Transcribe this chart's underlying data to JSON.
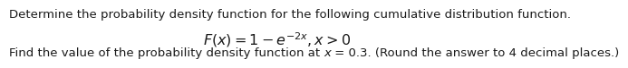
{
  "line1": "Determine the probability density function for the following cumulative distribution function.",
  "line2_math": "$F(x) = 1 - e^{-2x}, x > 0$",
  "line3_prefix": "Find the value of the probability density function at ",
  "line3_x": "x",
  "line3_suffix": " = 0.3. (Round the answer to 4 decimal places.)",
  "font_size": 9.5,
  "font_size_math": 11.5,
  "text_color": "#1a1a1a",
  "background_color": "#ffffff",
  "fig_width": 6.06,
  "fig_height": 0.75
}
